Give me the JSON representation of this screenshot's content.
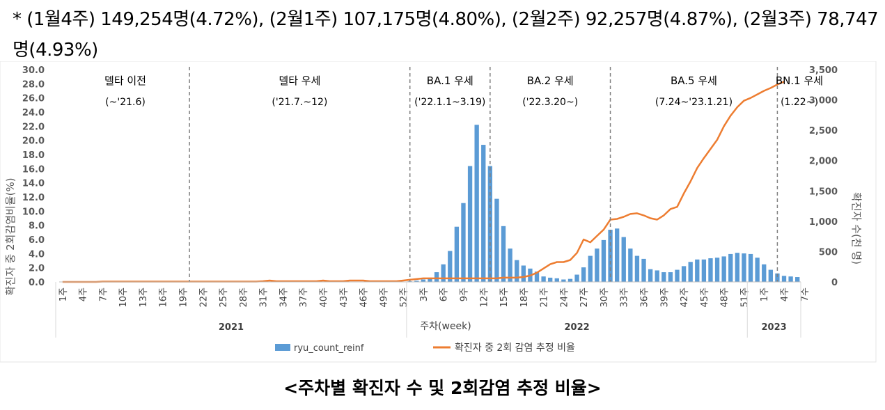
{
  "note": {
    "text": "* (1월4주) 149,254명(4.72%), (2월1주) 107,175명(4.80%), (2월2주) 92,257명(4.87%), (2월3주) 78,747명(4.93%)"
  },
  "caption": "<주차별 확진자 수 및 2회감염 추정 비율>",
  "colors": {
    "bar": "#5b9bd5",
    "line": "#ed7d31",
    "axis_text": "#595959",
    "divider": "#7f7f7f",
    "grid": "#d9d9d9"
  },
  "chart_data": {
    "type": "bar+line",
    "x_title": "주차(week)",
    "y_left_label": "확진자 중 2회감염비율(%)",
    "y_right_label": "확진자 수(천 명)",
    "y_left_ticks": [
      "0.0",
      "2.0",
      "4.0",
      "6.0",
      "8.0",
      "10.0",
      "12.0",
      "14.0",
      "16.0",
      "18.0",
      "20.0",
      "22.0",
      "24.0",
      "26.0",
      "28.0",
      "30.0"
    ],
    "y_left_range": [
      0,
      30
    ],
    "y_right_ticks": [
      "0",
      "500",
      "1,000",
      "1,500",
      "2,000",
      "2,500",
      "3,000",
      "3,500"
    ],
    "y_right_range": [
      0,
      3500
    ],
    "week_tick_labels": [
      "1주",
      "4주",
      "7주",
      "10주",
      "13주",
      "16주",
      "19주",
      "22주",
      "25주",
      "28주",
      "31주",
      "34주",
      "37주",
      "40주",
      "43주",
      "46주",
      "49주",
      "52주",
      "3주",
      "6주",
      "9주",
      "12주",
      "15주",
      "18주",
      "21주",
      "24주",
      "27주",
      "30주",
      "33주",
      "36주",
      "39주",
      "42주",
      "45주",
      "48주",
      "51주",
      "1주",
      "4주",
      "7주"
    ],
    "year_labels": [
      "2021",
      "2022",
      "2023"
    ],
    "legend": [
      "ryu_count_reinf",
      "확진자 중 2회 감염 추정 비율"
    ],
    "series": [
      {
        "name": "ryu_count_reinf",
        "type": "bar",
        "axis": "right",
        "unit": "천 명",
        "values": [
          2,
          2,
          2,
          2,
          2,
          2,
          2,
          2,
          2,
          2,
          2,
          2,
          2,
          2,
          2,
          2,
          2,
          2,
          2,
          2,
          2,
          2,
          2,
          2,
          2,
          2,
          2,
          2,
          2,
          2,
          2,
          2,
          2,
          2,
          2,
          2,
          2,
          2,
          2,
          2,
          2,
          2,
          2,
          2,
          2,
          2,
          2,
          2,
          2,
          2,
          2,
          2,
          10,
          20,
          40,
          70,
          160,
          290,
          510,
          910,
          1300,
          1910,
          2590,
          2260,
          1910,
          1370,
          920,
          550,
          360,
          270,
          220,
          170,
          90,
          70,
          60,
          40,
          50,
          120,
          240,
          430,
          550,
          690,
          860,
          880,
          740,
          550,
          430,
          380,
          210,
          190,
          160,
          160,
          200,
          260,
          330,
          370,
          370,
          390,
          400,
          420,
          460,
          480,
          470,
          460,
          400,
          290,
          200,
          140,
          100,
          90,
          80
        ]
      },
      {
        "name": "확진자 중 2회 감염 추정 비율",
        "type": "line",
        "axis": "left",
        "unit": "%",
        "values": [
          0,
          0,
          0,
          0,
          0,
          0,
          0.05,
          0.05,
          0.05,
          0.05,
          0.05,
          0.05,
          0.05,
          0.05,
          0.05,
          0.05,
          0.05,
          0.05,
          0.05,
          0.05,
          0.05,
          0.05,
          0.05,
          0.05,
          0.05,
          0.05,
          0.05,
          0.05,
          0.05,
          0.05,
          0.1,
          0.2,
          0.1,
          0.1,
          0.1,
          0.1,
          0.1,
          0.1,
          0.1,
          0.2,
          0.1,
          0.1,
          0.1,
          0.2,
          0.2,
          0.2,
          0.1,
          0.1,
          0.1,
          0.1,
          0.1,
          0.2,
          0.3,
          0.4,
          0.5,
          0.5,
          0.5,
          0.5,
          0.5,
          0.5,
          0.5,
          0.5,
          0.5,
          0.5,
          0.5,
          0.5,
          0.6,
          0.6,
          0.6,
          0.7,
          0.9,
          1.3,
          1.9,
          2.5,
          2.8,
          2.8,
          3.1,
          4.1,
          6.0,
          5.6,
          6.5,
          7.4,
          8.8,
          8.9,
          9.2,
          9.6,
          9.7,
          9.4,
          9.0,
          8.8,
          9.4,
          10.3,
          10.6,
          12.5,
          14.2,
          16.1,
          17.5,
          18.8,
          20.1,
          22.0,
          23.5,
          24.7,
          25.6,
          26.0,
          26.5,
          27.0,
          27.4,
          27.9,
          28.3
        ]
      }
    ],
    "dividers": [
      {
        "after_week_index": 19
      },
      {
        "after_week_index": 52
      },
      {
        "after_week_index": 64
      },
      {
        "after_week_index": 82
      },
      {
        "after_week_index": 107
      }
    ],
    "periods": [
      {
        "name": "델타 이전",
        "range": "(~'21.6)"
      },
      {
        "name": "델타 우세",
        "range": "('21.7.~12)"
      },
      {
        "name": "BA.1 우세",
        "range": "('22.1.1~3.19)"
      },
      {
        "name": "BA.2 우세",
        "range": "('22.3.20~)"
      },
      {
        "name": "BA.5 우세",
        "range": "(7.24~'23.1.21)"
      },
      {
        "name": "BN.1 우세",
        "range": "(1.22~)"
      }
    ]
  }
}
